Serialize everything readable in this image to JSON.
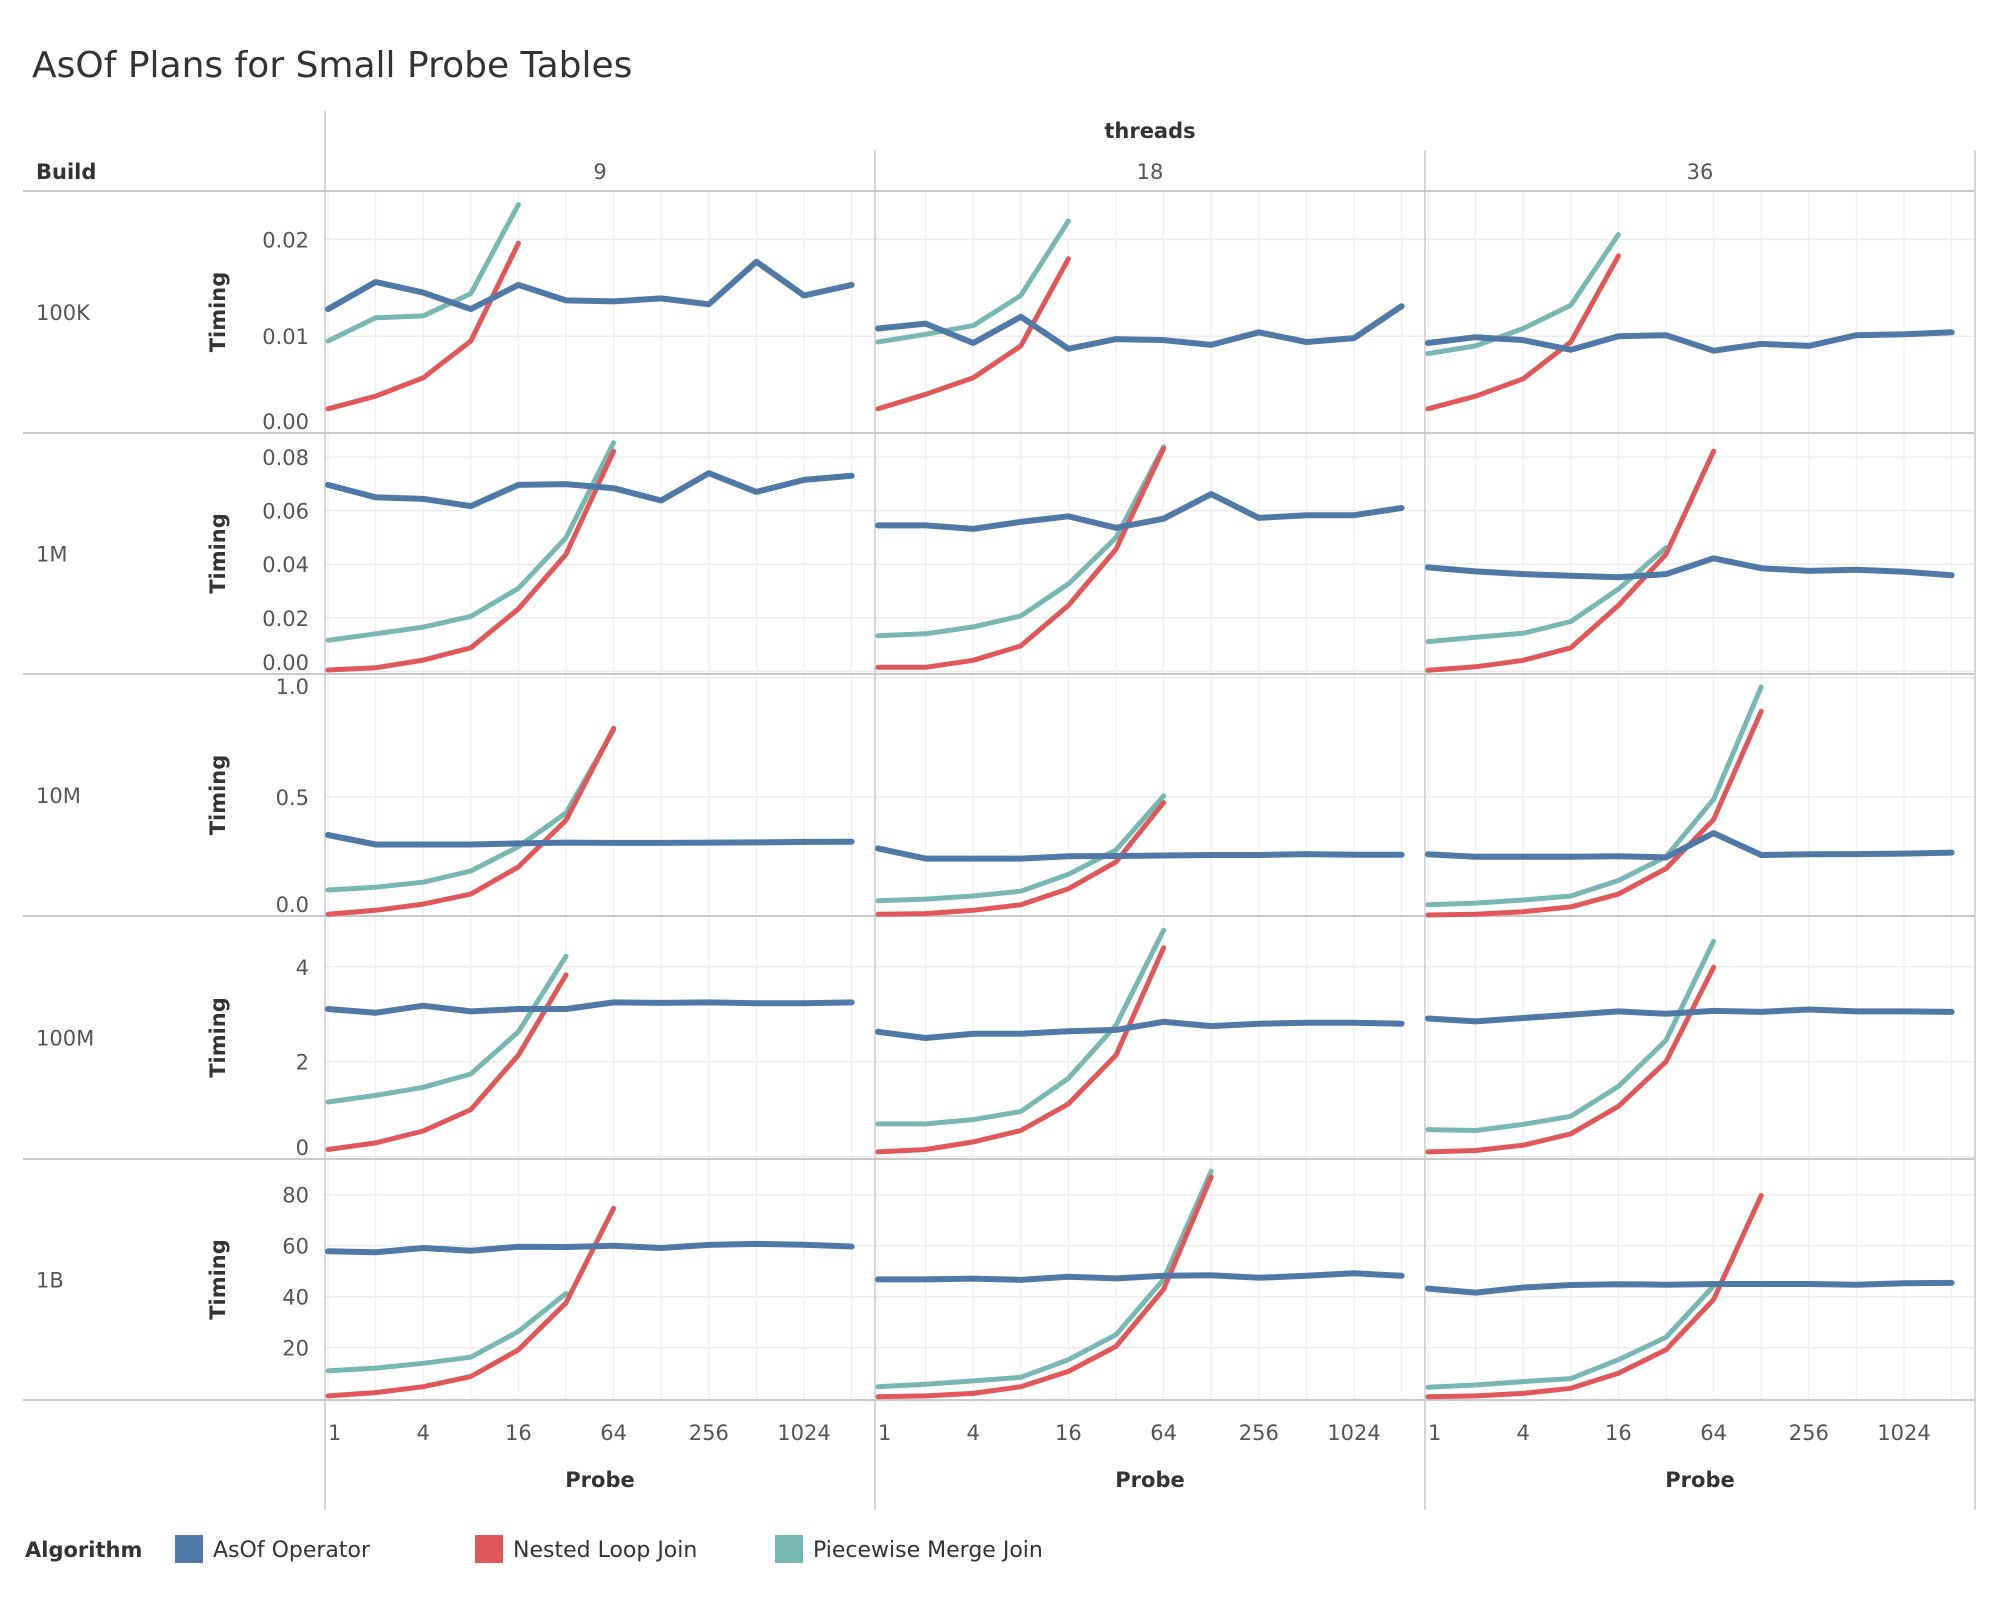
{
  "chart_data": {
    "type": "line",
    "title": "AsOf Plans for Small Probe Tables",
    "x_label": "Probe",
    "x_scale": "log2",
    "x_values": [
      1,
      2,
      4,
      8,
      16,
      32,
      64,
      128,
      256,
      512,
      1024,
      2048
    ],
    "x_ticks": [
      "1",
      "4",
      "16",
      "64",
      "256",
      "1024"
    ],
    "y_label": "Timing",
    "grid": true,
    "column_facet": {
      "label": "threads",
      "values": [
        "9",
        "18",
        "36"
      ]
    },
    "row_facet": {
      "label": "Build",
      "values": [
        "100K",
        "1M",
        "10M",
        "100M",
        "1B"
      ]
    },
    "legend": {
      "title": "Algorithm",
      "placement": "bottom-left",
      "items": [
        {
          "name": "AsOf Operator",
          "color": "#4e79a7"
        },
        {
          "name": "Nested Loop Join",
          "color": "#e15759"
        },
        {
          "name": "Piecewise Merge Join",
          "color": "#76b7b2"
        }
      ]
    },
    "rows": [
      {
        "build": "100K",
        "ylim": [
          0,
          0.025
        ],
        "yticks": [
          "0.00",
          "0.01",
          "0.02"
        ],
        "panels": [
          {
            "threads": "9",
            "series": {
              "AsOf Operator": [
                0.0128,
                0.0156,
                0.0145,
                0.0128,
                0.0153,
                0.0137,
                0.0136,
                0.0139,
                0.0133,
                0.0177,
                0.0142,
                0.0153
              ],
              "Nested Loop Join": [
                0.0025,
                0.0038,
                0.0057,
                0.0095,
                0.0196
              ],
              "Piecewise Merge Join": [
                0.0095,
                0.0119,
                0.0121,
                0.0144,
                0.0236
              ]
            }
          },
          {
            "threads": "18",
            "series": {
              "AsOf Operator": [
                0.0108,
                0.0113,
                0.0093,
                0.012,
                0.0087,
                0.0097,
                0.0096,
                0.0091,
                0.0104,
                0.0094,
                0.0098,
                0.0131
              ],
              "Nested Loop Join": [
                0.0025,
                0.004,
                0.0057,
                0.009,
                0.018
              ],
              "Piecewise Merge Join": [
                0.0094,
                0.0102,
                0.0111,
                0.0142,
                0.0219
              ]
            }
          },
          {
            "threads": "36",
            "series": {
              "AsOf Operator": [
                0.0093,
                0.0099,
                0.0096,
                0.0086,
                0.01,
                0.0101,
                0.0085,
                0.0092,
                0.009,
                0.0101,
                0.0102,
                0.0104
              ],
              "Nested Loop Join": [
                0.0025,
                0.0038,
                0.0056,
                0.0094,
                0.0183
              ],
              "Piecewise Merge Join": [
                0.0082,
                0.009,
                0.0108,
                0.0132,
                0.0205
              ]
            }
          }
        ]
      },
      {
        "build": "1M",
        "ylim": [
          -0.001,
          0.089
        ],
        "yticks": [
          "0.00",
          "0.02",
          "0.04",
          "0.06",
          "0.08"
        ],
        "panels": [
          {
            "threads": "9",
            "series": {
              "AsOf Operator": [
                0.0696,
                0.065,
                0.0644,
                0.0617,
                0.0696,
                0.0699,
                0.0684,
                0.0638,
                0.074,
                0.067,
                0.0715,
                0.073
              ],
              "Nested Loop Join": [
                0.0005,
                0.0013,
                0.0042,
                0.0088,
                0.0233,
                0.0437,
                0.0822
              ],
              "Piecewise Merge Join": [
                0.0116,
                0.014,
                0.0165,
                0.0205,
                0.031,
                0.0499,
                0.0854
              ]
            }
          },
          {
            "threads": "18",
            "series": {
              "AsOf Operator": [
                0.0545,
                0.0545,
                0.0532,
                0.0558,
                0.0579,
                0.0536,
                0.057,
                0.0662,
                0.0573,
                0.0583,
                0.0583,
                0.061
              ],
              "Nested Loop Join": [
                0.0015,
                0.0015,
                0.0041,
                0.0095,
                0.0246,
                0.0456,
                0.0832
              ],
              "Piecewise Merge Join": [
                0.0133,
                0.014,
                0.0166,
                0.0207,
                0.0326,
                0.0499,
                0.0838
              ]
            }
          },
          {
            "threads": "36",
            "series": {
              "AsOf Operator": [
                0.0388,
                0.0373,
                0.0363,
                0.0357,
                0.0351,
                0.0363,
                0.0422,
                0.0385,
                0.0375,
                0.0379,
                0.0372,
                0.0359
              ],
              "Nested Loop Join": [
                0.0004,
                0.0017,
                0.0041,
                0.0088,
                0.0246,
                0.0437,
                0.0822
              ],
              "Piecewise Merge Join": [
                0.0111,
                0.0127,
                0.0142,
                0.0186,
                0.0307,
                0.0462
              ]
            }
          }
        ]
      },
      {
        "build": "10M",
        "ylim": [
          0,
          1.016
        ],
        "yticks": [
          "0.0",
          "0.5",
          "1.0"
        ],
        "panels": [
          {
            "threads": "9",
            "series": {
              "AsOf Operator": [
                0.34,
                0.3,
                0.3,
                0.3,
                0.305,
                0.308,
                0.307,
                0.307,
                0.308,
                0.309,
                0.311,
                0.312
              ],
              "Nested Loop Join": [
                0.007,
                0.024,
                0.05,
                0.092,
                0.206,
                0.402,
                0.788
              ],
              "Piecewise Merge Join": [
                0.109,
                0.121,
                0.142,
                0.189,
                0.291,
                0.433,
                0.78
              ]
            }
          },
          {
            "threads": "18",
            "series": {
              "AsOf Operator": [
                0.284,
                0.241,
                0.241,
                0.241,
                0.251,
                0.252,
                0.254,
                0.256,
                0.256,
                0.26,
                0.257,
                0.257
              ],
              "Nested Loop Join": [
                0.007,
                0.01,
                0.024,
                0.047,
                0.114,
                0.227,
                0.476
              ],
              "Piecewise Merge Join": [
                0.064,
                0.071,
                0.084,
                0.104,
                0.175,
                0.277,
                0.504
              ]
            }
          },
          {
            "threads": "36",
            "series": {
              "AsOf Operator": [
                0.259,
                0.249,
                0.249,
                0.249,
                0.251,
                0.246,
                0.348,
                0.256,
                0.259,
                0.26,
                0.262,
                0.266
              ],
              "Nested Loop Join": [
                0.004,
                0.007,
                0.018,
                0.038,
                0.092,
                0.199,
                0.405,
                0.859
              ],
              "Piecewise Merge Join": [
                0.047,
                0.054,
                0.067,
                0.084,
                0.149,
                0.249,
                0.49,
                0.962
              ]
            }
          }
        ]
      },
      {
        "build": "100M",
        "ylim": [
          -0.05,
          5.07
        ],
        "yticks": [
          "0",
          "2",
          "4"
        ],
        "panels": [
          {
            "threads": "9",
            "series": {
              "AsOf Operator": [
                3.11,
                3.03,
                3.18,
                3.06,
                3.11,
                3.11,
                3.25,
                3.24,
                3.25,
                3.23,
                3.23,
                3.25
              ],
              "Nested Loop Join": [
                0.15,
                0.29,
                0.54,
                0.99,
                2.14,
                3.83
              ],
              "Piecewise Merge Join": [
                1.15,
                1.29,
                1.46,
                1.74,
                2.63,
                4.22
              ]
            }
          },
          {
            "threads": "18",
            "series": {
              "AsOf Operator": [
                2.63,
                2.5,
                2.59,
                2.59,
                2.64,
                2.67,
                2.84,
                2.75,
                2.8,
                2.82,
                2.82,
                2.8
              ],
              "Nested Loop Join": [
                0.1,
                0.15,
                0.31,
                0.55,
                1.11,
                2.14,
                4.4
              ],
              "Piecewise Merge Join": [
                0.69,
                0.69,
                0.78,
                0.95,
                1.65,
                2.77,
                4.77
              ]
            }
          },
          {
            "threads": "36",
            "series": {
              "AsOf Operator": [
                2.91,
                2.85,
                2.92,
                2.99,
                3.06,
                3.01,
                3.07,
                3.05,
                3.1,
                3.06,
                3.06,
                3.05
              ],
              "Nested Loop Join": [
                0.1,
                0.13,
                0.24,
                0.48,
                1.06,
                2.0,
                3.99
              ],
              "Piecewise Merge Join": [
                0.57,
                0.55,
                0.68,
                0.85,
                1.48,
                2.45,
                4.54
              ]
            }
          }
        ]
      },
      {
        "build": "1B",
        "ylim": [
          -0.5,
          94
        ],
        "yticks": [
          "20",
          "40",
          "60",
          "80"
        ],
        "panels": [
          {
            "threads": "9",
            "series": {
              "AsOf Operator": [
                57.8,
                57.4,
                59.1,
                58.0,
                59.6,
                59.5,
                60.0,
                59.1,
                60.3,
                60.7,
                60.4,
                59.7
              ],
              "Nested Loop Join": [
                1.1,
                2.4,
                4.7,
                8.7,
                19.2,
                37.6,
                74.7
              ],
              "Piecewise Merge Join": [
                10.9,
                12.0,
                13.9,
                16.3,
                26.4,
                41.3
              ]
            }
          },
          {
            "threads": "18",
            "series": {
              "AsOf Operator": [
                46.8,
                46.8,
                47.1,
                46.6,
                47.8,
                47.2,
                48.2,
                48.4,
                47.4,
                48.2,
                49.2,
                48.2
              ],
              "Nested Loop Join": [
                0.8,
                1.1,
                2.1,
                4.7,
                10.7,
                20.5,
                42.9,
                87.0
              ],
              "Piecewise Merge Join": [
                4.7,
                5.7,
                7.0,
                8.4,
                15.3,
                25.1,
                46.8,
                89.2
              ]
            }
          },
          {
            "threads": "36",
            "series": {
              "AsOf Operator": [
                43.2,
                41.6,
                43.6,
                44.6,
                44.9,
                44.7,
                45.0,
                45.0,
                45.0,
                44.7,
                45.3,
                45.4
              ],
              "Nested Loop Join": [
                0.8,
                1.1,
                2.1,
                4.1,
                10.0,
                19.2,
                38.9,
                79.7
              ],
              "Piecewise Merge Join": [
                4.5,
                5.4,
                6.7,
                7.9,
                15.3,
                24.1,
                44.2
              ]
            }
          }
        ]
      }
    ]
  }
}
